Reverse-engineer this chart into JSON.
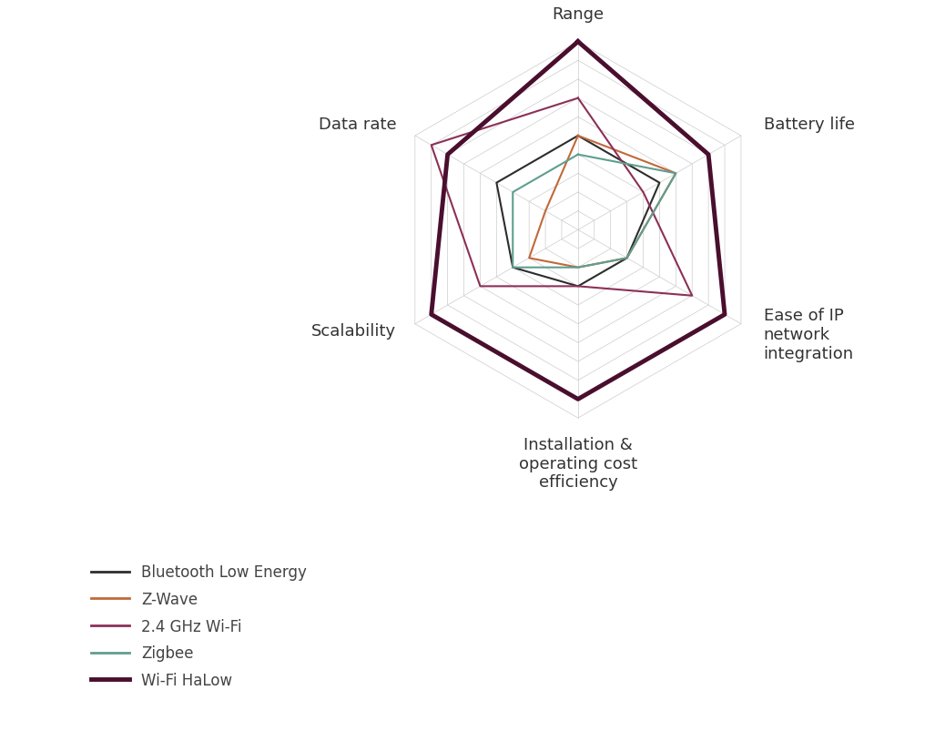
{
  "categories": [
    "Range",
    "Battery life",
    "Ease of IP\nnetwork\nintegration",
    "Installation &\noperating cost\nefficiency",
    "Scalability",
    "Data rate"
  ],
  "num_levels": 10,
  "series_order": [
    "Bluetooth Low Energy",
    "Z-Wave",
    "2.4 GHz Wi-Fi",
    "Zigbee",
    "Wi-Fi HaLow"
  ],
  "series": {
    "Bluetooth Low Energy": {
      "values": [
        5,
        5,
        3,
        3,
        4,
        5
      ],
      "color": "#2d2d2d",
      "linewidth": 1.5,
      "zorder": 3
    },
    "Z-Wave": {
      "values": [
        5,
        6,
        3,
        2,
        3,
        2
      ],
      "color": "#c1693a",
      "linewidth": 1.5,
      "zorder": 3
    },
    "2.4 GHz Wi-Fi": {
      "values": [
        7,
        4,
        7,
        3,
        6,
        9
      ],
      "color": "#8b3058",
      "linewidth": 1.5,
      "zorder": 3
    },
    "Zigbee": {
      "values": [
        4,
        6,
        3,
        2,
        4,
        4
      ],
      "color": "#5f9e8f",
      "linewidth": 1.5,
      "zorder": 3
    },
    "Wi-Fi HaLow": {
      "values": [
        10,
        8,
        9,
        9,
        9,
        8
      ],
      "color": "#4a0e2e",
      "linewidth": 3.5,
      "zorder": 4
    }
  },
  "max_value": 10,
  "grid_color": "#cccccc",
  "grid_linewidth": 0.5,
  "label_fontsize": 13,
  "legend_fontsize": 12,
  "background_color": "#ffffff"
}
